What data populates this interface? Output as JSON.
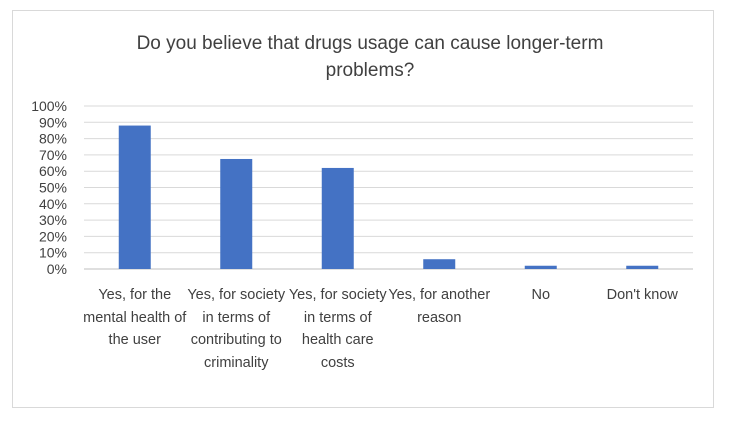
{
  "chart_data": {
    "type": "bar",
    "title": "Do you believe that drugs usage can cause longer-term problems?",
    "xlabel": "",
    "ylabel": "",
    "ylim": [
      0,
      100
    ],
    "y_ticks": [
      "0%",
      "10%",
      "20%",
      "30%",
      "40%",
      "50%",
      "60%",
      "70%",
      "80%",
      "90%",
      "100%"
    ],
    "grid": true,
    "legend": "none",
    "bar_color": "#4472C4",
    "categories": [
      "Yes, for the mental health of the user",
      "Yes, for society in terms of contributing to criminality",
      "Yes, for society in terms of health care costs",
      "Yes, for another reason",
      "No",
      "Don't know"
    ],
    "values": [
      88,
      67.5,
      62,
      6,
      2,
      2
    ]
  }
}
